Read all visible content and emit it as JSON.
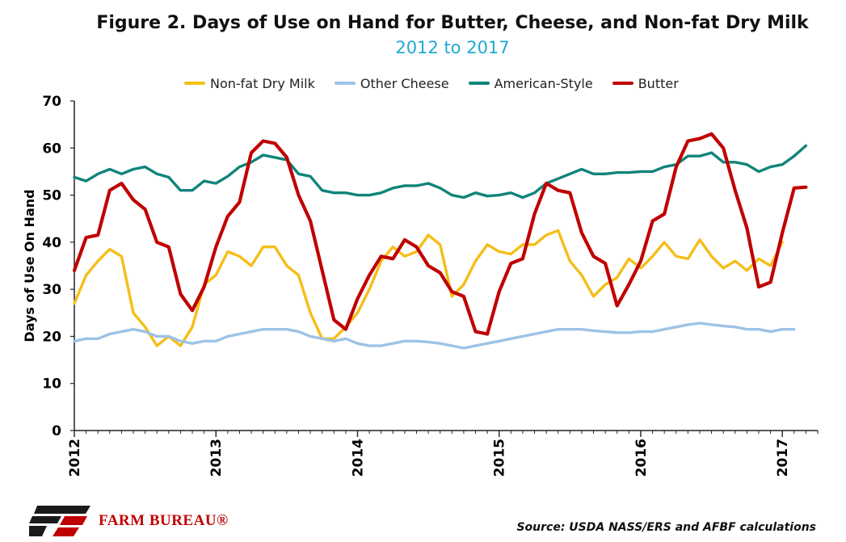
{
  "chart_data": {
    "type": "line",
    "title": "Figure 2. Days of Use on Hand for Butter, Cheese, and Non-fat Dry Milk",
    "subtitle": "2012 to 2017",
    "ylabel": "Days of Use On Hand",
    "xlabel": "",
    "ylim": [
      0,
      70
    ],
    "yticks": [
      0,
      10,
      20,
      30,
      40,
      50,
      60,
      70
    ],
    "xrange": [
      2012,
      2017.25
    ],
    "xticks": [
      2012,
      2013,
      2014,
      2015,
      2016,
      2017
    ],
    "xtick_labels": [
      "2012",
      "2013",
      "2014",
      "2015",
      "2016",
      "2017"
    ],
    "x_frequency": "monthly, starting January 2012",
    "grid": false,
    "legend_position": "top",
    "series": [
      {
        "name": "Non-fat Dry Milk",
        "color": "#F5BE17",
        "values": [
          27,
          33,
          36,
          38.5,
          37,
          25,
          22,
          18,
          20,
          18,
          22,
          31,
          33,
          38,
          37,
          35,
          39,
          39,
          35,
          33,
          25,
          19.5,
          19.5,
          22,
          25,
          30,
          36,
          39,
          37,
          38,
          41.5,
          39.5,
          28.5,
          31,
          36,
          39.5,
          38,
          37.5,
          39.5,
          39.5,
          41.5,
          42.5,
          36,
          33,
          28.5,
          31,
          32.5,
          36.5,
          34.5,
          37,
          40,
          37,
          36.5,
          40.5,
          37,
          34.5,
          36,
          34,
          36.5,
          35,
          40
        ]
      },
      {
        "name": "Other Cheese",
        "color": "#9DC3E6",
        "values": [
          19,
          19.5,
          19.5,
          20.5,
          21,
          21.5,
          21,
          20,
          20,
          19,
          18.5,
          19,
          19,
          20,
          20.5,
          21,
          21.5,
          21.5,
          21.5,
          21,
          20,
          19.5,
          19,
          19.5,
          18.5,
          18,
          18,
          18.5,
          19,
          19,
          18.8,
          18.5,
          18,
          17.5,
          18,
          18.5,
          19,
          19.5,
          20,
          20.5,
          21,
          21.5,
          21.5,
          21.5,
          21.2,
          21,
          20.8,
          20.8,
          21,
          21,
          21.5,
          22,
          22.5,
          22.8,
          22.5,
          22.2,
          22,
          21.5,
          21.5,
          21,
          21.5,
          21.5
        ]
      },
      {
        "name": "American-Style",
        "color": "#10847A",
        "values": [
          53.8,
          53,
          54.5,
          55.5,
          54.5,
          55.5,
          56,
          54.5,
          53.8,
          51,
          51,
          53,
          52.5,
          54,
          56,
          57,
          58.5,
          58,
          57.5,
          54.5,
          54,
          51,
          50.5,
          50.5,
          50,
          50,
          50.5,
          51.5,
          52,
          52,
          52.5,
          51.5,
          50,
          49.5,
          50.5,
          49.8,
          50,
          50.5,
          49.5,
          50.5,
          52.5,
          53.5,
          54.5,
          55.5,
          54.5,
          54.5,
          54.8,
          54.8,
          55,
          55,
          56,
          56.5,
          58.3,
          58.3,
          59,
          57,
          57,
          56.5,
          55,
          56,
          56.5,
          58.3,
          60.5
        ]
      },
      {
        "name": "Butter",
        "color": "#C00000",
        "values": [
          34,
          41,
          41.5,
          51,
          52.5,
          49,
          47,
          40,
          39,
          29,
          25.5,
          30.5,
          39,
          45.5,
          48.5,
          59,
          61.5,
          61,
          58,
          50,
          44.5,
          34,
          23.5,
          21.5,
          28,
          33,
          37,
          36.5,
          40.5,
          39,
          35,
          33.5,
          29.5,
          28.5,
          21,
          20.5,
          29.5,
          35.5,
          36.5,
          46,
          52.5,
          51,
          50.5,
          42,
          37,
          35.5,
          26.5,
          31,
          36,
          44.5,
          46,
          56,
          61.5,
          62,
          63,
          60,
          51,
          43,
          30.5,
          31.5,
          42,
          51.5,
          51.7
        ]
      }
    ]
  },
  "footer": {
    "logo_text": "FARM BUREAU®",
    "logo_color": "#C00000",
    "source": "Source: USDA NASS/ERS and AFBF calculations"
  },
  "colors": {
    "subtitle": "#1FA9D6",
    "axis": "#222222"
  }
}
